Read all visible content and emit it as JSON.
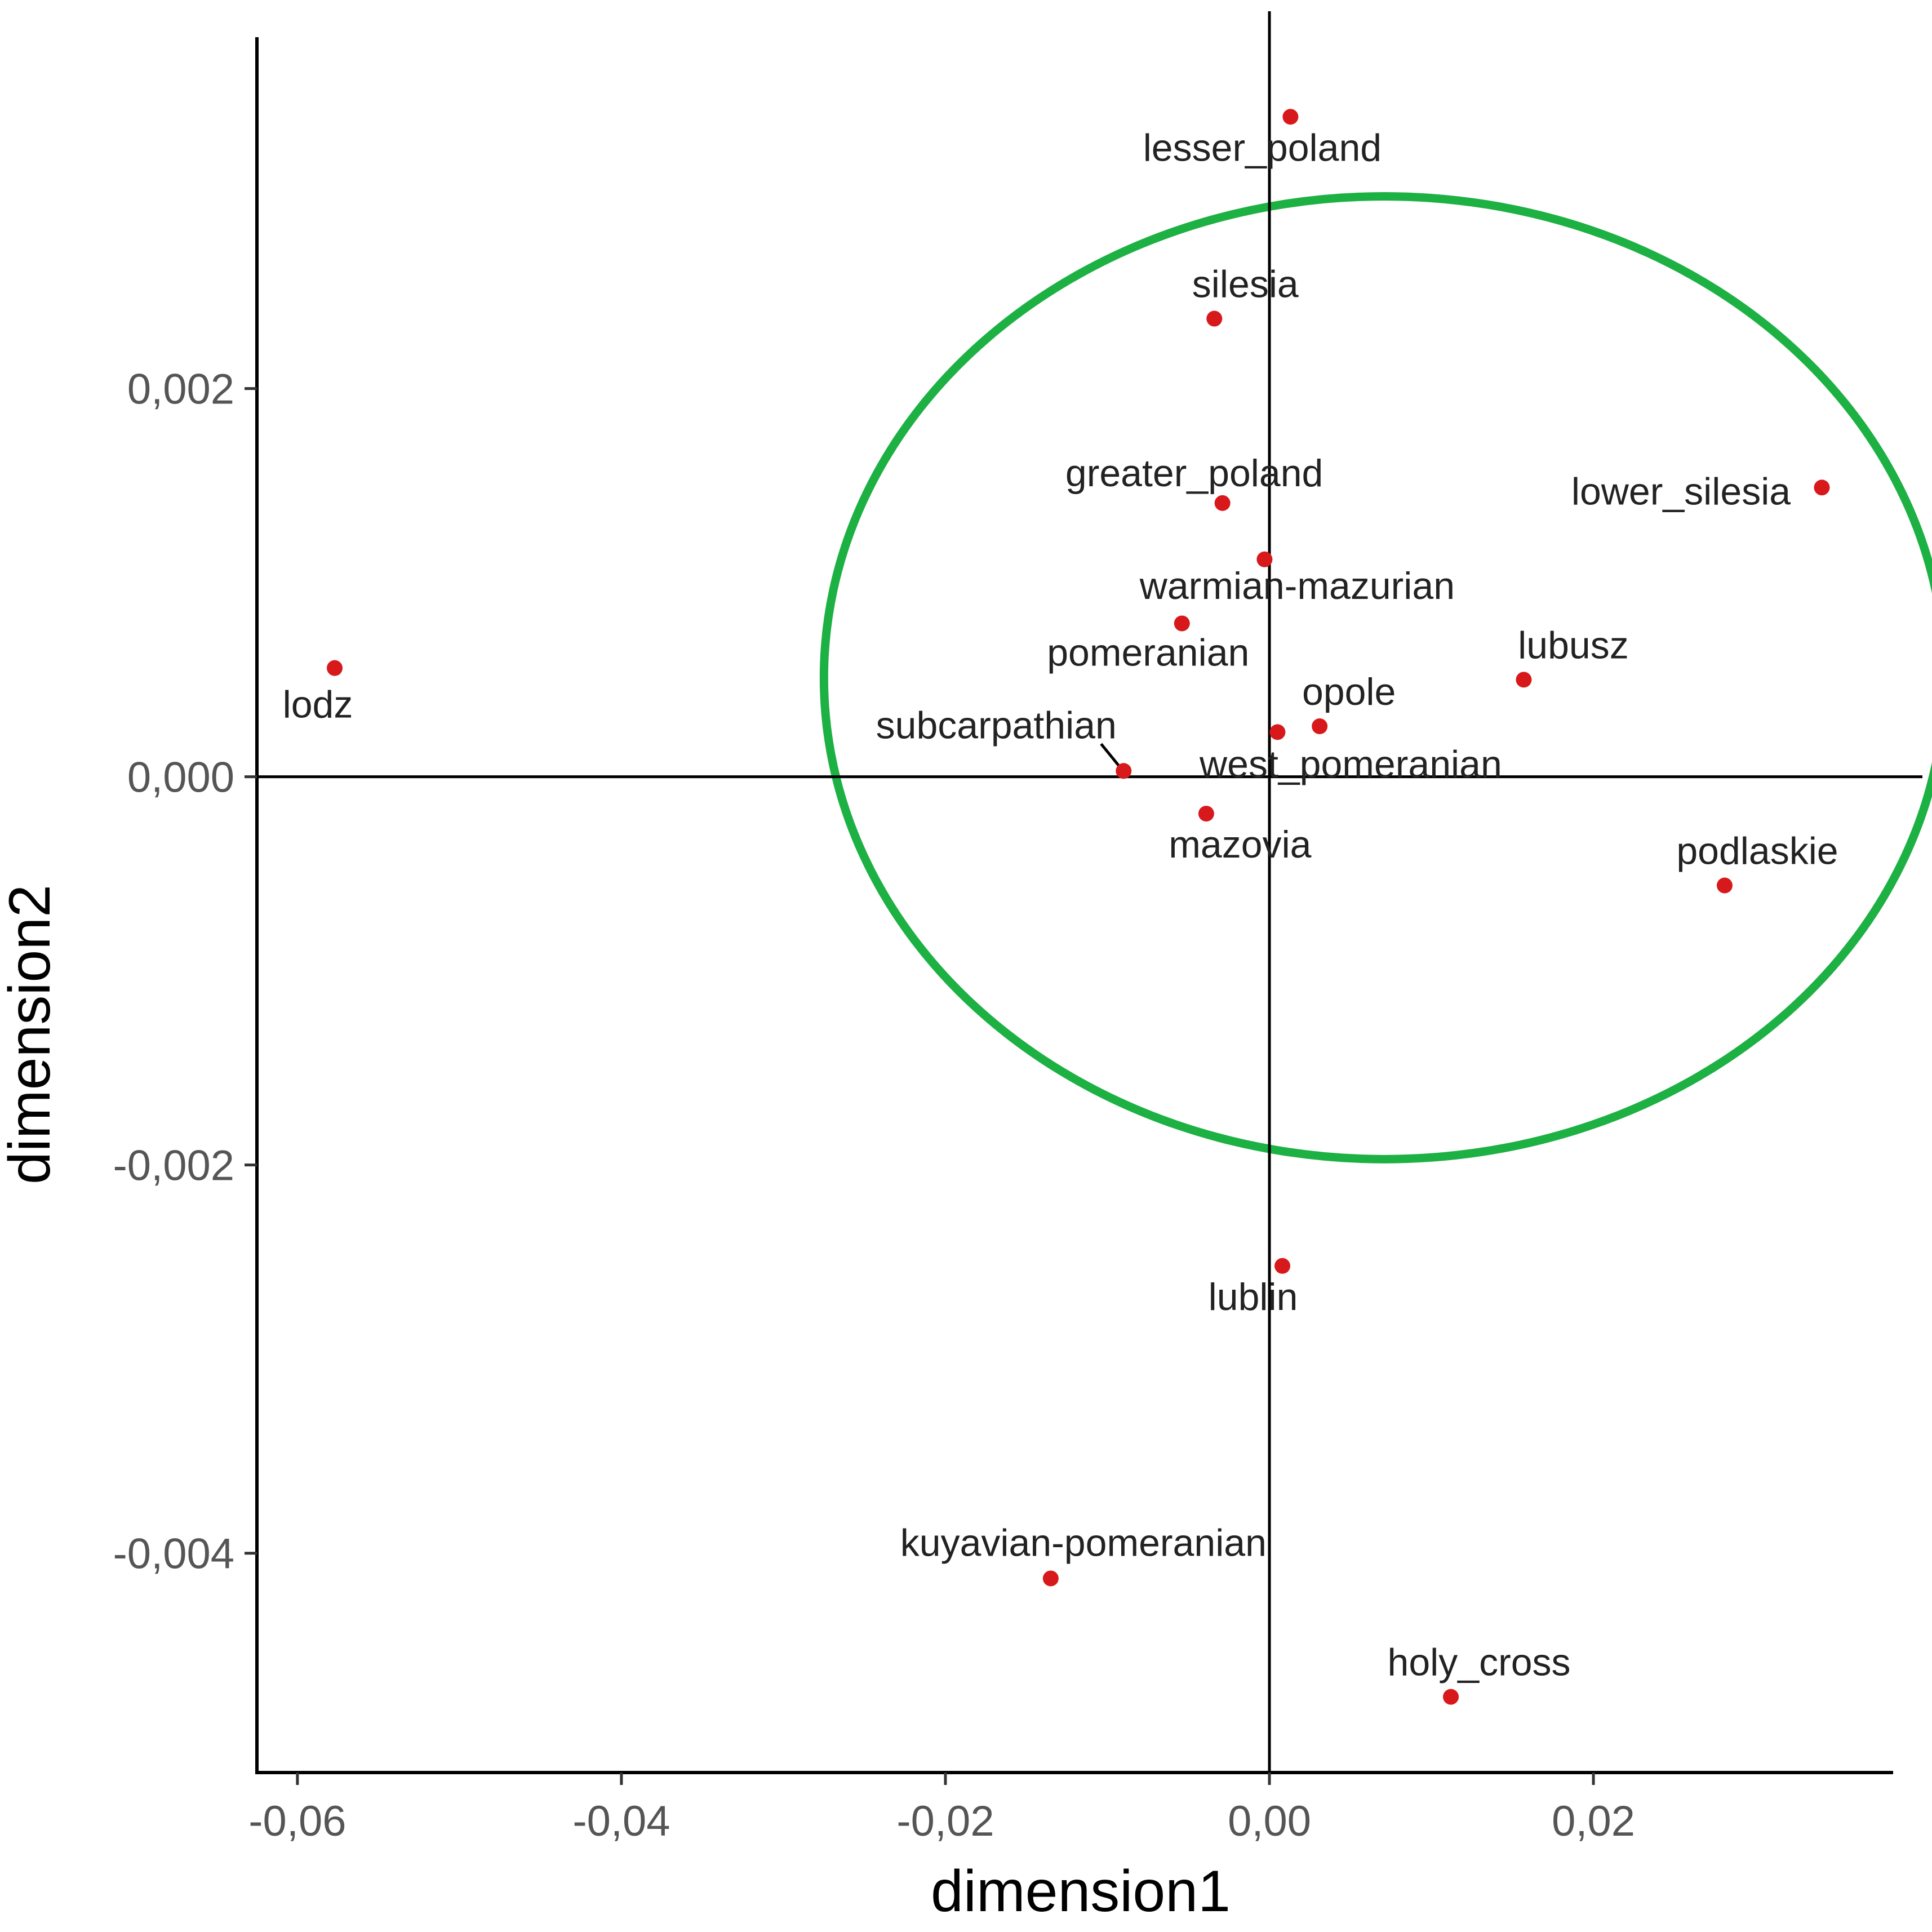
{
  "chart_data": {
    "type": "scatter",
    "title": "",
    "xlabel": "dimension1",
    "ylabel": "dimension2",
    "xlim": [
      -0.0625,
      0.0385
    ],
    "ylim": [
      -0.00513,
      0.00381
    ],
    "x_ticks": [
      -0.06,
      -0.04,
      -0.02,
      0.0,
      0.02
    ],
    "x_tick_labels": [
      "-0,06",
      "-0,04",
      "-0,02",
      "0,00",
      "0,02"
    ],
    "y_ticks": [
      -0.004,
      -0.002,
      0.0,
      0.002
    ],
    "y_tick_labels": [
      "-0,004",
      "-0,002",
      "0,000",
      "0,002"
    ],
    "grid": false,
    "reference_lines": {
      "x": 0.0,
      "y": 0.0
    },
    "point_color": "#d7191c",
    "ellipse": {
      "cx": 0.0071,
      "cy": 0.00051,
      "rx": 0.0346,
      "ry": 0.00248,
      "color": "#1db043"
    },
    "points": [
      {
        "label": "lesser_poland",
        "x": 0.0013,
        "y": 0.0034
      },
      {
        "label": "silesia",
        "x": -0.0034,
        "y": 0.00236
      },
      {
        "label": "greater_poland",
        "x": -0.0029,
        "y": 0.00141
      },
      {
        "label": "warmian-mazurian",
        "x": -0.0003,
        "y": 0.00112
      },
      {
        "label": "pomeranian",
        "x": -0.0054,
        "y": 0.00079
      },
      {
        "label": "lodz",
        "x": -0.0577,
        "y": 0.00056
      },
      {
        "label": "lubusz",
        "x": 0.0157,
        "y": 0.0005
      },
      {
        "label": "opole",
        "x": 0.0031,
        "y": 0.00026
      },
      {
        "label": "west_pomeranian",
        "x": 0.0005,
        "y": 0.00023
      },
      {
        "label": "subcarpathian",
        "x": -0.009,
        "y": 3e-05
      },
      {
        "label": "mazovia",
        "x": -0.0039,
        "y": -0.00019
      },
      {
        "label": "lower_silesia",
        "x": 0.0341,
        "y": 0.00149
      },
      {
        "label": "podlaskie",
        "x": 0.0281,
        "y": -0.00056
      },
      {
        "label": "lublin",
        "x": 0.0008,
        "y": -0.00252
      },
      {
        "label": "kuyavian-pomeranian",
        "x": -0.0135,
        "y": -0.00413
      },
      {
        "label": "holy_cross",
        "x": 0.0112,
        "y": -0.00474
      }
    ]
  }
}
